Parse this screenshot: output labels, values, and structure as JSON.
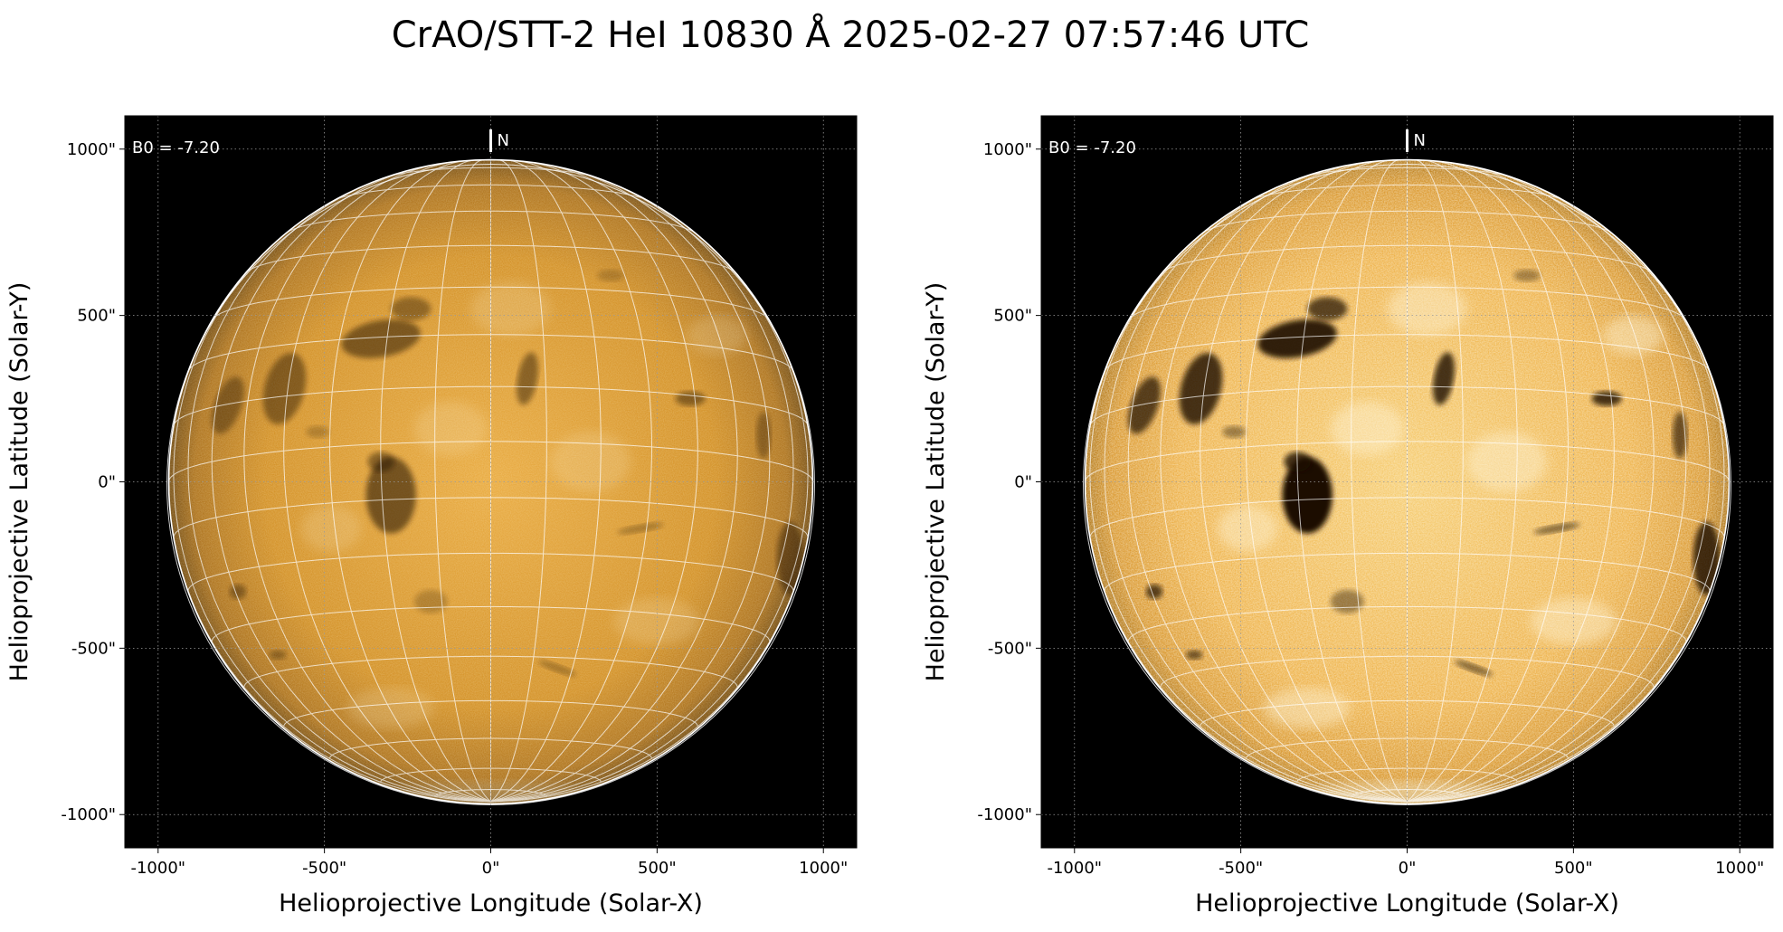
{
  "title": "CrAO/STT-2 HeI 10830 Å 2025-02-27 07:57:46 UTC",
  "colors": {
    "background": "#000000",
    "disk_inner": "#f2b546",
    "disk_outer": "#8a5a10",
    "dark_feature": "#1b1000",
    "bright_plage": "#fff4d6",
    "grid": "#ffffff"
  },
  "panels": [
    {
      "id": "left",
      "contrast": "normal",
      "b0_label": "B0 = -7.20",
      "north_label": "N",
      "xlabel": "Helioprojective Longitude (Solar-X)",
      "ylabel": "Helioprojective Latitude (Solar-Y)",
      "xticks": [
        "-1000\"",
        "-500\"",
        "0\"",
        "500\"",
        "1000\""
      ],
      "yticks": [
        "1000\"",
        "500\"",
        "0\"",
        "-500\"",
        "-1000\""
      ]
    },
    {
      "id": "right",
      "contrast": "enhanced",
      "b0_label": "B0 = -7.20",
      "north_label": "N",
      "xlabel": "Helioprojective Longitude (Solar-X)",
      "ylabel": "Helioprojective Latitude (Solar-Y)",
      "xticks": [
        "-1000\"",
        "-500\"",
        "0\"",
        "500\"",
        "1000\""
      ],
      "yticks": [
        "1000\"",
        "500\"",
        "0\"",
        "-500\"",
        "-1000\""
      ]
    }
  ],
  "chart_data": {
    "type": "heatmap",
    "title": "CrAO/STT-2 HeI 10830 Å 2025-02-27 07:57:46 UTC",
    "xlabel": "Helioprojective Longitude (Solar-X)",
    "ylabel": "Helioprojective Latitude (Solar-Y)",
    "xlim": [
      -1100,
      1100
    ],
    "ylim": [
      -1100,
      1100
    ],
    "x_tick_values": [
      -1000,
      -500,
      0,
      500,
      1000
    ],
    "y_tick_values": [
      -1000,
      -500,
      0,
      500,
      1000
    ],
    "solar_radius_arcsec": 968,
    "b0_deg": -7.2,
    "grid": true,
    "heliographic_grid_step_deg": 10
  }
}
